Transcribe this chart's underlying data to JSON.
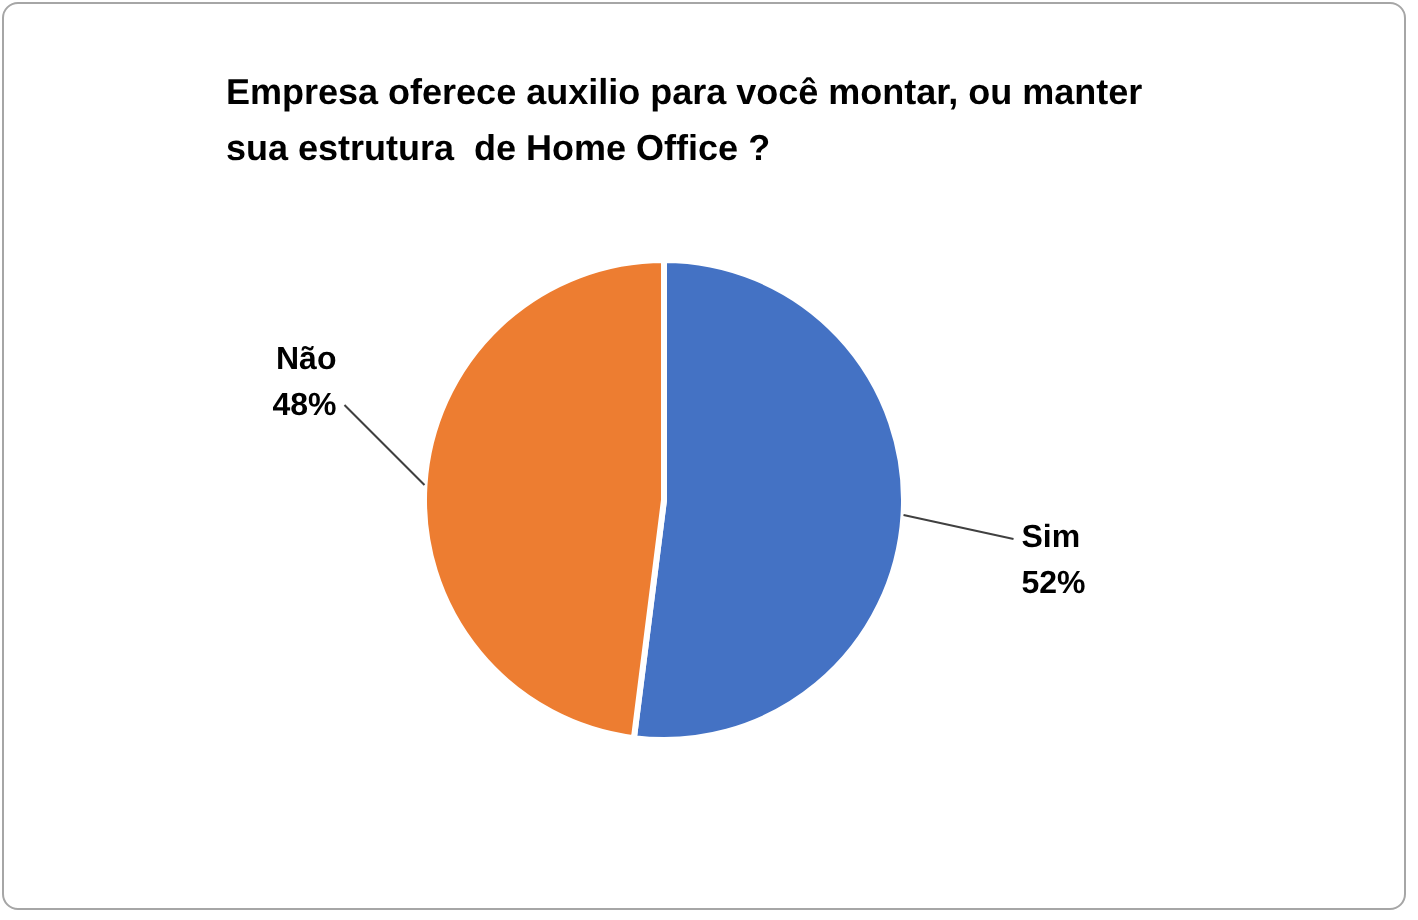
{
  "chart_data": {
    "type": "pie",
    "title": "Empresa oferece auxilio para você montar, ou manter sua estrutura  de Home Office ?",
    "categories": [
      "Sim",
      "Não"
    ],
    "values": [
      52,
      48
    ],
    "colors": [
      "#4472c4",
      "#ed7d31"
    ],
    "value_labels": [
      "52%",
      "48%"
    ]
  }
}
